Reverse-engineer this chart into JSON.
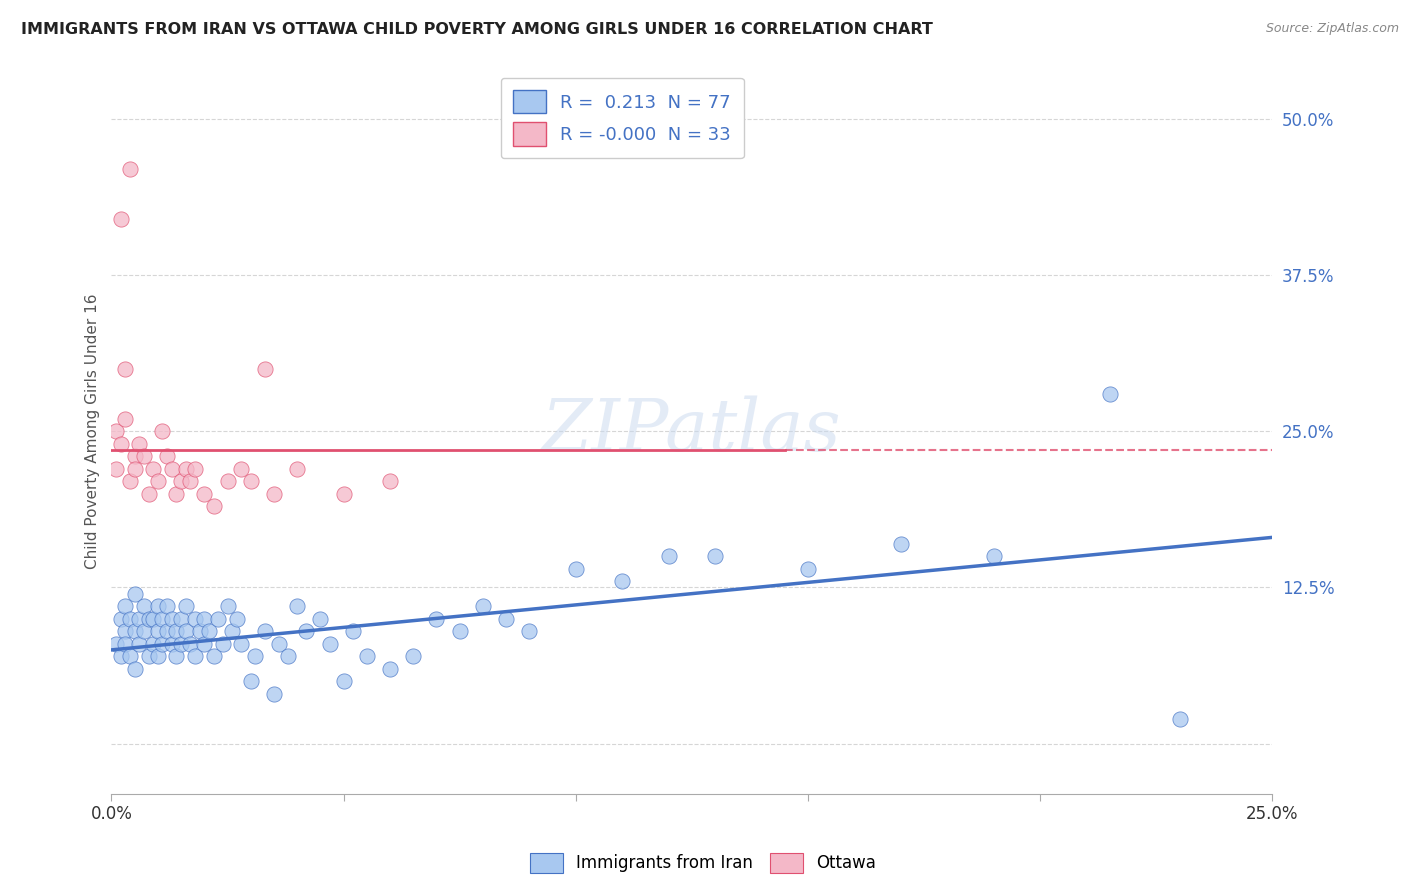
{
  "title": "IMMIGRANTS FROM IRAN VS OTTAWA CHILD POVERTY AMONG GIRLS UNDER 16 CORRELATION CHART",
  "source": "Source: ZipAtlas.com",
  "ylabel": "Child Poverty Among Girls Under 16",
  "xlim": [
    0.0,
    0.25
  ],
  "ylim": [
    -0.04,
    0.54
  ],
  "xticks": [
    0.0,
    0.05,
    0.1,
    0.15,
    0.2,
    0.25
  ],
  "xticklabels": [
    "0.0%",
    "",
    "",
    "",
    "",
    "25.0%"
  ],
  "yticks_right": [
    0.0,
    0.125,
    0.25,
    0.375,
    0.5
  ],
  "yticklabels_right": [
    "",
    "12.5%",
    "25.0%",
    "37.5%",
    "50.0%"
  ],
  "legend_R1": " 0.213",
  "legend_N1": "77",
  "legend_R2": "-0.000",
  "legend_N2": "33",
  "color_blue": "#A8C8F0",
  "color_pink": "#F4B8C8",
  "line_blue": "#4472C4",
  "line_pink": "#E05070",
  "watermark_text": "ZIPatlas",
  "background_color": "#FFFFFF",
  "grid_color": "#CCCCCC",
  "blue_x": [
    0.001,
    0.002,
    0.002,
    0.003,
    0.003,
    0.003,
    0.004,
    0.004,
    0.005,
    0.005,
    0.005,
    0.006,
    0.006,
    0.007,
    0.007,
    0.008,
    0.008,
    0.009,
    0.009,
    0.01,
    0.01,
    0.01,
    0.011,
    0.011,
    0.012,
    0.012,
    0.013,
    0.013,
    0.014,
    0.014,
    0.015,
    0.015,
    0.016,
    0.016,
    0.017,
    0.018,
    0.018,
    0.019,
    0.02,
    0.02,
    0.021,
    0.022,
    0.023,
    0.024,
    0.025,
    0.026,
    0.027,
    0.028,
    0.03,
    0.031,
    0.033,
    0.035,
    0.036,
    0.038,
    0.04,
    0.042,
    0.045,
    0.047,
    0.05,
    0.052,
    0.055,
    0.06,
    0.065,
    0.07,
    0.075,
    0.08,
    0.085,
    0.09,
    0.1,
    0.11,
    0.12,
    0.13,
    0.15,
    0.17,
    0.19,
    0.215,
    0.23
  ],
  "blue_y": [
    0.08,
    0.1,
    0.07,
    0.09,
    0.11,
    0.08,
    0.1,
    0.07,
    0.09,
    0.12,
    0.06,
    0.1,
    0.08,
    0.09,
    0.11,
    0.1,
    0.07,
    0.08,
    0.1,
    0.09,
    0.11,
    0.07,
    0.1,
    0.08,
    0.09,
    0.11,
    0.08,
    0.1,
    0.09,
    0.07,
    0.1,
    0.08,
    0.09,
    0.11,
    0.08,
    0.1,
    0.07,
    0.09,
    0.08,
    0.1,
    0.09,
    0.07,
    0.1,
    0.08,
    0.11,
    0.09,
    0.1,
    0.08,
    0.05,
    0.07,
    0.09,
    0.04,
    0.08,
    0.07,
    0.11,
    0.09,
    0.1,
    0.08,
    0.05,
    0.09,
    0.07,
    0.06,
    0.07,
    0.1,
    0.09,
    0.11,
    0.1,
    0.09,
    0.14,
    0.13,
    0.15,
    0.15,
    0.14,
    0.16,
    0.15,
    0.28,
    0.02
  ],
  "pink_x": [
    0.001,
    0.001,
    0.002,
    0.002,
    0.003,
    0.003,
    0.004,
    0.004,
    0.005,
    0.005,
    0.006,
    0.007,
    0.008,
    0.009,
    0.01,
    0.011,
    0.012,
    0.013,
    0.014,
    0.015,
    0.016,
    0.017,
    0.018,
    0.02,
    0.022,
    0.025,
    0.028,
    0.03,
    0.033,
    0.035,
    0.04,
    0.05,
    0.06
  ],
  "pink_y": [
    0.22,
    0.25,
    0.24,
    0.42,
    0.26,
    0.3,
    0.21,
    0.46,
    0.23,
    0.22,
    0.24,
    0.23,
    0.2,
    0.22,
    0.21,
    0.25,
    0.23,
    0.22,
    0.2,
    0.21,
    0.22,
    0.21,
    0.22,
    0.2,
    0.19,
    0.21,
    0.22,
    0.21,
    0.3,
    0.2,
    0.22,
    0.2,
    0.21
  ],
  "pink_line_xmax": 0.145,
  "pink_line_y": 0.235,
  "blue_line_x0": 0.0,
  "blue_line_y0": 0.075,
  "blue_line_x1": 0.25,
  "blue_line_y1": 0.165
}
